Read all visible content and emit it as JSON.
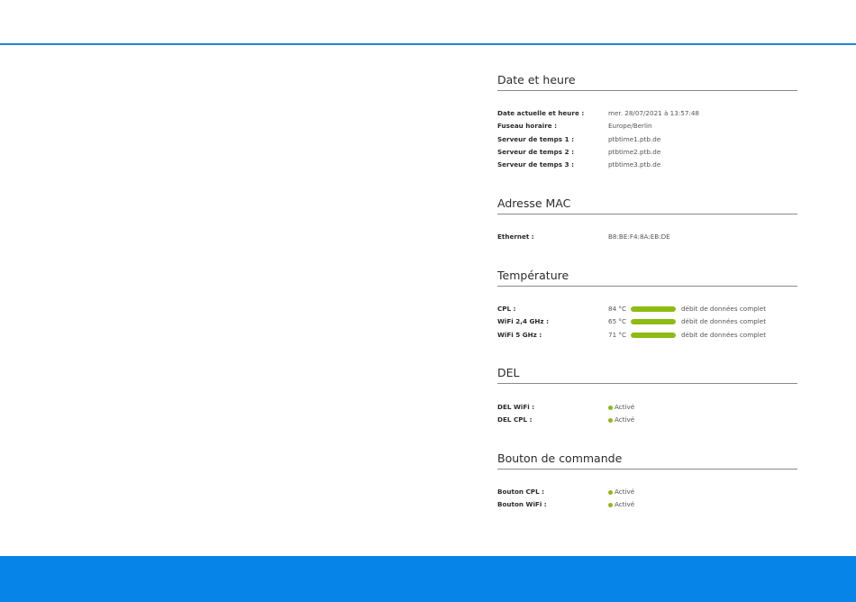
{
  "sections": {
    "date": {
      "title": "Date et heure",
      "rows": [
        {
          "label": "Date actuelle et heure :",
          "value": "mer. 28/07/2021 à 13:57:48"
        },
        {
          "label": "Fuseau horaire :",
          "value": "Europe/Berlin"
        },
        {
          "label": "Serveur de temps 1 :",
          "value": "ptbtime1.ptb.de"
        },
        {
          "label": "Serveur de temps 2 :",
          "value": "ptbtime2.ptb.de"
        },
        {
          "label": "Serveur de temps 3 :",
          "value": "ptbtime3.ptb.de"
        }
      ]
    },
    "mac": {
      "title": "Adresse MAC",
      "rows": [
        {
          "label": "Ethernet :",
          "value": "B8:BE:F4:8A:EB:DE"
        }
      ]
    },
    "temperature": {
      "title": "Température",
      "rows": [
        {
          "label": "CPL :",
          "value": "84 °C",
          "level": 1.0,
          "status": "débit de données complet"
        },
        {
          "label": "WiFi 2,4 GHz :",
          "value": "65 °C",
          "level": 1.0,
          "status": "débit de données complet"
        },
        {
          "label": "WiFi 5 GHz :",
          "value": "71 °C",
          "level": 1.0,
          "status": "débit de données complet"
        }
      ]
    },
    "del": {
      "title": "DEL",
      "rows": [
        {
          "label": "DEL WiFi :",
          "value": "Activé"
        },
        {
          "label": "DEL CPL :",
          "value": "Activé"
        }
      ]
    },
    "button": {
      "title": "Bouton de commande",
      "rows": [
        {
          "label": "Bouton CPL :",
          "value": "Activé"
        },
        {
          "label": "Bouton WiFi :",
          "value": "Activé"
        }
      ]
    }
  },
  "colors": {
    "accent": "#0684e8",
    "status_green": "#8dbb12"
  }
}
